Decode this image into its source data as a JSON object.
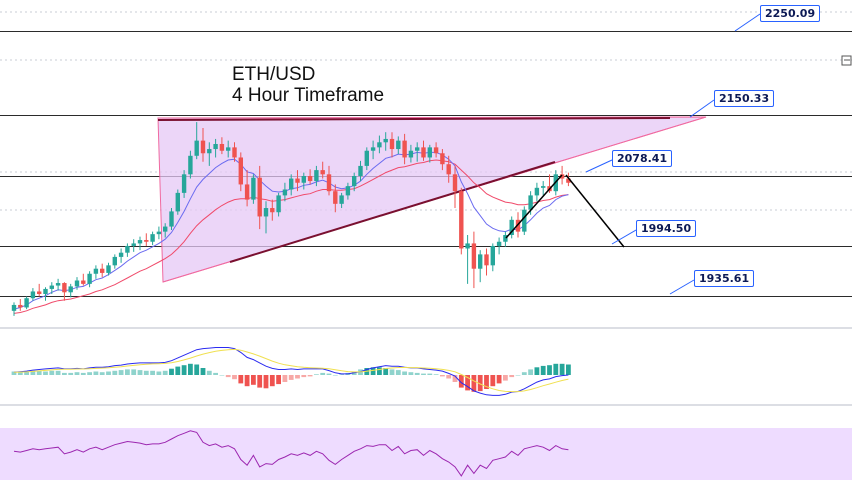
{
  "chart_title_line1": "ETH/USD",
  "chart_title_line2": "4 Hour Timeframe",
  "price_levels": [
    {
      "value": 2250.09,
      "label": "2250.09"
    },
    {
      "value": 2150.33,
      "label": "2150.33"
    },
    {
      "value": 2078.41,
      "label": "2078.41"
    },
    {
      "value": 1994.5,
      "label": "1994.50"
    },
    {
      "value": 1935.61,
      "label": "1935.61"
    }
  ],
  "colors": {
    "bull": "#26a69a",
    "bear": "#ef5350",
    "triangle_fill": "#e6c8f5",
    "triangle_edge": "#f06aa0",
    "trendline": "#7a1030",
    "ema_fast": "#6b6bf0",
    "ema_slow": "#f04a6a",
    "macd_line": "#2b2bf0",
    "signal_line": "#f0e050",
    "rsi_band": "#eedcff",
    "rsi_line": "#9c27b0",
    "projection": "#000000"
  },
  "chart_data": {
    "type": "candlestick",
    "symbol": "ETH/USD",
    "timeframe": "4 Hour",
    "ylim": [
      1900,
      2270
    ],
    "candles": [
      [
        1918,
        1928,
        1912,
        1925
      ],
      [
        1925,
        1932,
        1918,
        1922
      ],
      [
        1922,
        1935,
        1920,
        1933
      ],
      [
        1933,
        1945,
        1930,
        1941
      ],
      [
        1941,
        1950,
        1935,
        1938
      ],
      [
        1938,
        1946,
        1930,
        1944
      ],
      [
        1944,
        1952,
        1938,
        1948
      ],
      [
        1948,
        1956,
        1942,
        1951
      ],
      [
        1951,
        1952,
        1930,
        1940
      ],
      [
        1940,
        1950,
        1934,
        1947
      ],
      [
        1947,
        1958,
        1943,
        1954
      ],
      [
        1954,
        1962,
        1948,
        1950
      ],
      [
        1950,
        1965,
        1946,
        1962
      ],
      [
        1962,
        1972,
        1956,
        1968
      ],
      [
        1968,
        1974,
        1958,
        1963
      ],
      [
        1963,
        1975,
        1960,
        1972
      ],
      [
        1972,
        1985,
        1968,
        1982
      ],
      [
        1982,
        1992,
        1975,
        1987
      ],
      [
        1987,
        1998,
        1982,
        1995
      ],
      [
        1995,
        2003,
        1988,
        1998
      ],
      [
        1998,
        2006,
        1990,
        2002
      ],
      [
        2002,
        2010,
        1995,
        2000
      ],
      [
        2000,
        2012,
        1996,
        2009
      ],
      [
        2009,
        2018,
        2003,
        2012
      ],
      [
        2012,
        2022,
        2005,
        2018
      ],
      [
        2018,
        2040,
        2014,
        2036
      ],
      [
        2036,
        2062,
        2032,
        2058
      ],
      [
        2058,
        2085,
        2052,
        2080
      ],
      [
        2080,
        2108,
        2075,
        2102
      ],
      [
        2102,
        2142,
        2098,
        2120
      ],
      [
        2120,
        2135,
        2095,
        2105
      ],
      [
        2105,
        2118,
        2090,
        2110
      ],
      [
        2110,
        2122,
        2100,
        2116
      ],
      [
        2116,
        2124,
        2104,
        2108
      ],
      [
        2108,
        2120,
        2100,
        2112
      ],
      [
        2112,
        2118,
        2095,
        2100
      ],
      [
        2100,
        2106,
        2060,
        2068
      ],
      [
        2068,
        2085,
        2042,
        2050
      ],
      [
        2050,
        2080,
        2045,
        2076
      ],
      [
        2076,
        2090,
        2015,
        2030
      ],
      [
        2030,
        2048,
        2010,
        2040
      ],
      [
        2040,
        2050,
        2025,
        2035
      ],
      [
        2035,
        2058,
        2030,
        2055
      ],
      [
        2055,
        2070,
        2048,
        2062
      ],
      [
        2062,
        2080,
        2055,
        2075
      ],
      [
        2075,
        2085,
        2060,
        2070
      ],
      [
        2070,
        2082,
        2062,
        2078
      ],
      [
        2078,
        2086,
        2068,
        2072
      ],
      [
        2072,
        2090,
        2066,
        2085
      ],
      [
        2085,
        2095,
        2075,
        2080
      ],
      [
        2080,
        2090,
        2055,
        2060
      ],
      [
        2060,
        2068,
        2035,
        2045
      ],
      [
        2045,
        2058,
        2040,
        2055
      ],
      [
        2055,
        2070,
        2050,
        2066
      ],
      [
        2066,
        2082,
        2060,
        2078
      ],
      [
        2078,
        2096,
        2072,
        2090
      ],
      [
        2090,
        2112,
        2085,
        2108
      ],
      [
        2108,
        2120,
        2098,
        2112
      ],
      [
        2112,
        2126,
        2105,
        2118
      ],
      [
        2118,
        2130,
        2108,
        2122
      ],
      [
        2122,
        2130,
        2100,
        2110
      ],
      [
        2110,
        2125,
        2104,
        2120
      ],
      [
        2120,
        2128,
        2092,
        2100
      ],
      [
        2100,
        2115,
        2094,
        2108
      ],
      [
        2108,
        2118,
        2095,
        2112
      ],
      [
        2112,
        2120,
        2096,
        2100
      ],
      [
        2100,
        2115,
        2094,
        2112
      ],
      [
        2112,
        2118,
        2100,
        2105
      ],
      [
        2105,
        2110,
        2085,
        2092
      ],
      [
        2092,
        2102,
        2070,
        2080
      ],
      [
        2080,
        2090,
        2040,
        2060
      ],
      [
        2060,
        2064,
        1985,
        1992
      ],
      [
        1992,
        2008,
        1950,
        1998
      ],
      [
        1998,
        2012,
        1945,
        1968
      ],
      [
        1968,
        1990,
        1952,
        1985
      ],
      [
        1985,
        1992,
        1960,
        1972
      ],
      [
        1972,
        1998,
        1965,
        1995
      ],
      [
        1995,
        2005,
        1985,
        2000
      ],
      [
        2000,
        2012,
        1994,
        2008
      ],
      [
        2008,
        2030,
        2004,
        2026
      ],
      [
        2026,
        2035,
        2005,
        2012
      ],
      [
        2012,
        2042,
        2008,
        2038
      ],
      [
        2038,
        2060,
        2032,
        2055
      ],
      [
        2055,
        2070,
        2048,
        2064
      ],
      [
        2064,
        2072,
        2055,
        2066
      ],
      [
        2066,
        2080,
        2058,
        2060
      ],
      [
        2060,
        2085,
        2055,
        2080
      ],
      [
        2080,
        2090,
        2068,
        2075
      ],
      [
        2075,
        2082,
        2066,
        2070
      ]
    ],
    "ema_fast": [
      1920,
      1922,
      1925,
      1930,
      1933,
      1936,
      1940,
      1943,
      1942,
      1943,
      1946,
      1947,
      1951,
      1955,
      1957,
      1961,
      1966,
      1971,
      1977,
      1982,
      1987,
      1990,
      1994,
      1998,
      2003,
      2011,
      2023,
      2036,
      2051,
      2065,
      2074,
      2081,
      2088,
      2093,
      2097,
      2098,
      2092,
      2083,
      2081,
      2073,
      2066,
      2060,
      2059,
      2060,
      2063,
      2064,
      2067,
      2068,
      2071,
      2073,
      2070,
      2065,
      2063,
      2064,
      2067,
      2072,
      2080,
      2087,
      2093,
      2099,
      2101,
      2104,
      2103,
      2104,
      2106,
      2105,
      2106,
      2106,
      2103,
      2098,
      2090,
      2071,
      2057,
      2041,
      2031,
      2021,
      2016,
      2013,
      2012,
      2015,
      2014,
      2019,
      2026,
      2034,
      2040,
      2043,
      2050,
      2054,
      2056
    ],
    "ema_slow": [
      1915,
      1916,
      1918,
      1921,
      1923,
      1925,
      1928,
      1930,
      1931,
      1932,
      1934,
      1936,
      1938,
      1941,
      1943,
      1946,
      1949,
      1953,
      1957,
      1961,
      1965,
      1968,
      1972,
      1976,
      1980,
      1985,
      1992,
      2000,
      2010,
      2019,
      2026,
      2032,
      2038,
      2043,
      2047,
      2050,
      2051,
      2051,
      2053,
      2051,
      2050,
      2048,
      2049,
      2050,
      2052,
      2054,
      2056,
      2057,
      2060,
      2062,
      2062,
      2061,
      2061,
      2062,
      2063,
      2066,
      2070,
      2074,
      2078,
      2082,
      2085,
      2088,
      2089,
      2091,
      2093,
      2094,
      2096,
      2097,
      2096,
      2095,
      2092,
      2085,
      2078,
      2070,
      2064,
      2057,
      2053,
      2050,
      2047,
      2046,
      2044,
      2044,
      2045,
      2047,
      2049,
      2050,
      2053,
      2055,
      2056
    ],
    "macd_hist": [
      0.5,
      0.4,
      0.5,
      0.6,
      0.6,
      0.5,
      0.6,
      0.6,
      0.3,
      0.3,
      0.4,
      0.3,
      0.4,
      0.5,
      0.4,
      0.5,
      0.6,
      0.7,
      0.8,
      0.8,
      0.7,
      0.6,
      0.6,
      0.5,
      0.6,
      0.9,
      1.2,
      1.4,
      1.6,
      1.5,
      1.0,
      0.6,
      0.3,
      0.0,
      -0.3,
      -0.6,
      -1.2,
      -1.6,
      -1.4,
      -1.8,
      -1.9,
      -1.6,
      -1.3,
      -1.0,
      -0.7,
      -0.5,
      -0.3,
      -0.2,
      0.1,
      0.3,
      0.2,
      0.0,
      0.1,
      0.3,
      0.5,
      0.8,
      1.0,
      1.1,
      1.1,
      1.0,
      0.8,
      0.7,
      0.5,
      0.4,
      0.3,
      0.2,
      0.2,
      0.1,
      -0.2,
      -0.5,
      -1.0,
      -1.8,
      -2.2,
      -2.4,
      -2.3,
      -2.0,
      -1.6,
      -1.2,
      -0.8,
      -0.3,
      0.0,
      0.4,
      0.8,
      1.1,
      1.3,
      1.4,
      1.6,
      1.6,
      1.5
    ],
    "rsi": [
      55,
      54,
      56,
      58,
      57,
      58,
      59,
      60,
      52,
      54,
      57,
      54,
      58,
      60,
      57,
      60,
      63,
      65,
      67,
      66,
      65,
      63,
      64,
      64,
      66,
      70,
      74,
      77,
      80,
      78,
      66,
      62,
      64,
      60,
      62,
      58,
      45,
      38,
      50,
      36,
      40,
      39,
      45,
      48,
      52,
      50,
      53,
      50,
      55,
      52,
      44,
      39,
      45,
      50,
      55,
      58,
      62,
      61,
      63,
      63,
      56,
      61,
      52,
      56,
      57,
      50,
      56,
      52,
      46,
      42,
      36,
      25,
      38,
      28,
      38,
      34,
      44,
      46,
      48,
      55,
      50,
      58,
      60,
      62,
      60,
      56,
      62,
      58,
      57
    ]
  },
  "visual_structure": {
    "pattern": "ascending triangle",
    "projection": "down from resistance to support"
  }
}
